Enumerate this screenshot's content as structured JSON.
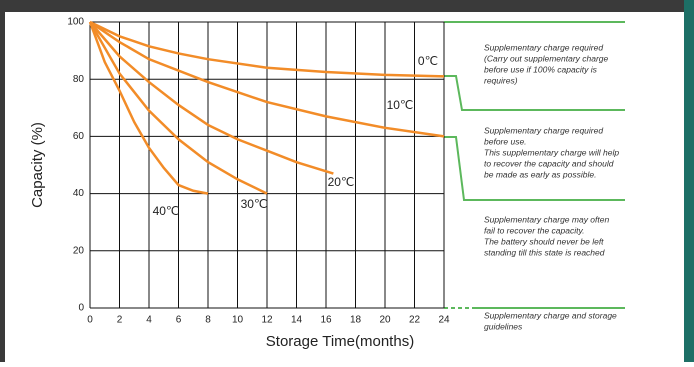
{
  "chart_data": {
    "type": "line",
    "x_label": "Storage Time(months)",
    "y_label": "Capacity (%)",
    "xlim": [
      0,
      24
    ],
    "xticks": [
      0,
      2,
      4,
      6,
      8,
      10,
      12,
      14,
      16,
      18,
      20,
      22,
      24
    ],
    "ylim": [
      0,
      100
    ],
    "yticks": [
      0,
      20,
      40,
      60,
      80,
      100
    ],
    "grid": true,
    "series": [
      {
        "name": "0℃",
        "color": "#f28c28",
        "x": [
          0,
          2,
          4,
          6,
          8,
          12,
          16,
          20,
          24
        ],
        "values": [
          100,
          95,
          91.5,
          89,
          87,
          84,
          82.5,
          81.5,
          81
        ]
      },
      {
        "name": "10℃",
        "color": "#f28c28",
        "x": [
          0,
          2,
          4,
          8,
          12,
          16,
          20,
          24
        ],
        "values": [
          100,
          93,
          87,
          79,
          72,
          67,
          63,
          60
        ]
      },
      {
        "name": "20℃",
        "color": "#f28c28",
        "x": [
          0,
          2,
          4,
          6,
          8,
          10,
          12,
          14,
          16.5
        ],
        "values": [
          100,
          88,
          79,
          71,
          64,
          59,
          55,
          51,
          47
        ]
      },
      {
        "name": "30℃",
        "color": "#f28c28",
        "x": [
          0,
          2,
          4,
          6,
          8,
          10,
          12
        ],
        "values": [
          100,
          82,
          69,
          59,
          51,
          45,
          40
        ]
      },
      {
        "name": "40℃",
        "color": "#f28c28",
        "x": [
          0,
          1,
          2,
          3,
          4,
          5,
          6,
          7,
          8
        ],
        "values": [
          100,
          86,
          76,
          65,
          56,
          49,
          43,
          41,
          40
        ]
      }
    ],
    "annotations": [
      [
        "Supplementary charge required",
        "(Carry out supplementary charge",
        "before use if 100% capacity is",
        "requires)"
      ],
      [
        "Supplementary charge required",
        "before use.",
        "This supplementary charge will help",
        "to recover the capacity and should",
        "be made  as early as possible."
      ],
      [
        "Supplementary charge may often",
        "fail to recover the capacity.",
        "The battery should never be left",
        "standing till this state is reached"
      ],
      [
        "Supplementary charge and storage",
        "guidelines"
      ]
    ]
  }
}
